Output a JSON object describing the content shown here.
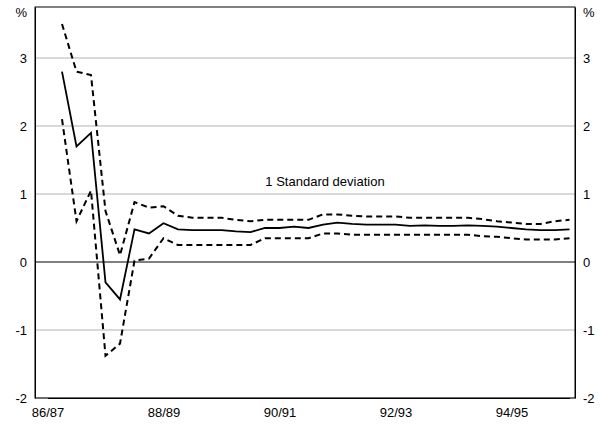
{
  "chart_data": {
    "type": "line",
    "ylabel": "%",
    "annotations": [
      "1 Standard deviation"
    ],
    "categories": [
      "86/87",
      null,
      null,
      null,
      null,
      null,
      null,
      null,
      "88/89",
      null,
      null,
      null,
      null,
      null,
      null,
      null,
      "90/91",
      null,
      null,
      null,
      null,
      null,
      null,
      null,
      "92/93",
      null,
      null,
      null,
      null,
      null,
      null,
      null,
      "94/95",
      null,
      null,
      null,
      null
    ],
    "series": [
      {
        "color": "#000000",
        "line_style": "solid",
        "values": [
          null,
          2.8,
          1.7,
          1.9,
          -0.3,
          -0.55,
          0.48,
          0.42,
          0.57,
          0.48,
          0.47,
          0.47,
          0.47,
          0.45,
          0.44,
          0.5,
          0.5,
          0.52,
          0.5,
          0.55,
          0.58,
          0.56,
          0.55,
          0.55,
          0.55,
          0.53,
          0.54,
          0.53,
          0.53,
          0.54,
          0.53,
          0.52,
          0.5,
          0.48,
          0.47,
          0.47,
          0.48
        ]
      },
      {
        "color": "#000000",
        "line_style": "dashed",
        "values": [
          null,
          3.5,
          2.8,
          2.75,
          0.75,
          0.1,
          0.88,
          0.8,
          0.82,
          0.68,
          0.65,
          0.65,
          0.65,
          0.62,
          0.6,
          0.62,
          0.62,
          0.62,
          0.62,
          0.7,
          0.7,
          0.68,
          0.67,
          0.67,
          0.67,
          0.65,
          0.65,
          0.65,
          0.65,
          0.65,
          0.63,
          0.6,
          0.58,
          0.56,
          0.56,
          0.6,
          0.62
        ]
      },
      {
        "color": "#000000",
        "line_style": "dashed",
        "values": [
          null,
          2.1,
          0.6,
          1.05,
          -1.38,
          -1.2,
          0.02,
          0.05,
          0.35,
          0.25,
          0.25,
          0.25,
          0.25,
          0.25,
          0.25,
          0.35,
          0.35,
          0.35,
          0.35,
          0.42,
          0.42,
          0.4,
          0.4,
          0.4,
          0.4,
          0.4,
          0.4,
          0.4,
          0.4,
          0.4,
          0.38,
          0.37,
          0.35,
          0.33,
          0.33,
          0.33,
          0.35
        ]
      }
    ],
    "ylim": [
      -2,
      3.75
    ],
    "yticks": [
      -2,
      -1,
      0,
      1,
      2,
      3
    ],
    "grid": true
  }
}
